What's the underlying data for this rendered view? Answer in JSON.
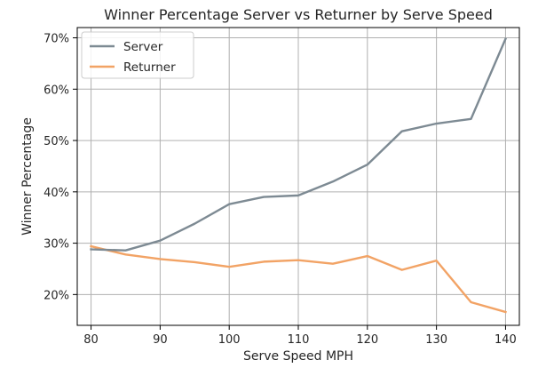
{
  "chart_data": {
    "type": "line",
    "title": "Winner Percentage Server vs Returner by Serve Speed",
    "xlabel": "Serve Speed MPH",
    "ylabel": "Winner Percentage",
    "x": [
      80,
      85,
      90,
      95,
      100,
      105,
      110,
      115,
      120,
      125,
      130,
      135,
      140
    ],
    "xlim": [
      78,
      142
    ],
    "ylim": [
      14,
      72
    ],
    "xticks": [
      80,
      90,
      100,
      110,
      120,
      130,
      140
    ],
    "xtick_labels": [
      "80",
      "90",
      "100",
      "110",
      "120",
      "130",
      "140"
    ],
    "yticks": [
      20,
      30,
      40,
      50,
      60,
      70
    ],
    "ytick_labels": [
      "20%",
      "30%",
      "40%",
      "50%",
      "60%",
      "70%"
    ],
    "grid": true,
    "legend_position": "top-left",
    "series": [
      {
        "name": "Server",
        "color": "#7d8a93",
        "values": [
          28.8,
          28.6,
          30.5,
          33.8,
          37.6,
          39.0,
          39.3,
          42.0,
          45.3,
          51.8,
          53.3,
          54.2,
          69.8
        ]
      },
      {
        "name": "Returner",
        "color": "#f2a365",
        "values": [
          29.4,
          27.8,
          26.9,
          26.3,
          25.4,
          26.4,
          26.7,
          26.0,
          27.5,
          24.8,
          26.6,
          18.5,
          16.6
        ]
      }
    ]
  }
}
